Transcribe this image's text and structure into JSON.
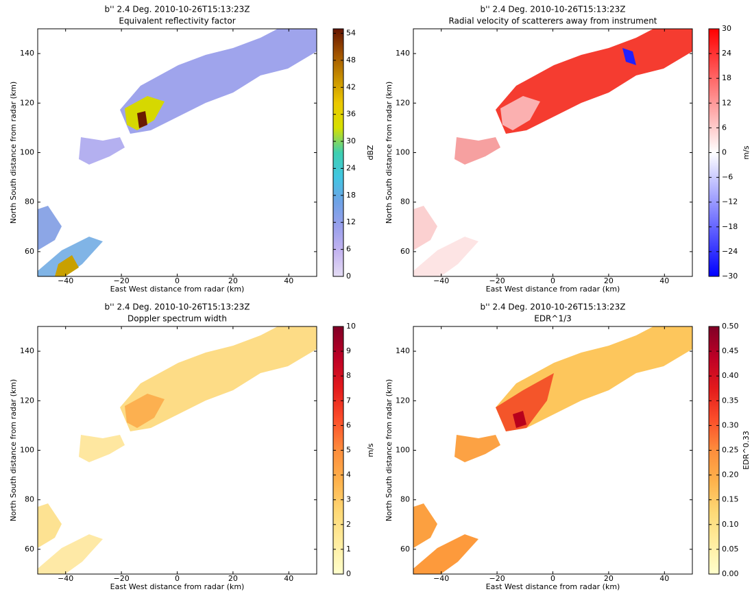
{
  "chart_data": [
    {
      "type": "heatmap",
      "title": "b'' 2.4 Deg. 2010-10-26T15:13:23Z",
      "subtitle": "Equivalent reflectivity factor",
      "xlabel": "East West distance from radar (km)",
      "ylabel": "North South distance from radar (km)",
      "xlim": [
        -50,
        50
      ],
      "ylim": [
        50,
        150
      ],
      "xticks": [
        {
          "value": -40,
          "label": "−40"
        },
        {
          "value": -20,
          "label": "−20"
        },
        0,
        20,
        40
      ],
      "yticks": [
        60,
        80,
        100,
        120,
        140
      ],
      "colorbar": {
        "label": "dBZ",
        "lim": [
          0,
          55
        ],
        "ticks": [
          0,
          6,
          12,
          18,
          24,
          30,
          36,
          42,
          48,
          54
        ],
        "colors": [
          "#e4dcf4",
          "#c4b4f0",
          "#9aa0ec",
          "#6fa2e6",
          "#42c6e2",
          "#3ecfb0",
          "#d6e000",
          "#ecc800",
          "#c89000",
          "#a05200",
          "#641400"
        ]
      }
    },
    {
      "type": "heatmap",
      "title": "b'' 2.4 Deg. 2010-10-26T15:13:23Z",
      "subtitle": "Radial velocity of scatterers away from instrument",
      "xlabel": "East West distance from radar (km)",
      "ylabel": "North South distance from radar (km)",
      "xlim": [
        -50,
        50
      ],
      "ylim": [
        50,
        150
      ],
      "xticks": [
        {
          "value": -40,
          "label": "−40"
        },
        {
          "value": -20,
          "label": "−20"
        },
        0,
        20,
        40
      ],
      "yticks": [
        60,
        80,
        100,
        120,
        140
      ],
      "colorbar": {
        "label": "m/s",
        "lim": [
          -30,
          30
        ],
        "ticks": [
          {
            "value": -30,
            "label": "−30"
          },
          {
            "value": -24,
            "label": "−24"
          },
          {
            "value": -18,
            "label": "−18"
          },
          {
            "value": -12,
            "label": "−12"
          },
          {
            "value": -6,
            "label": "−6"
          },
          0,
          6,
          12,
          18,
          24,
          30
        ],
        "colors": [
          "#0000ff",
          "#ffffff",
          "#ff0000"
        ]
      }
    },
    {
      "type": "heatmap",
      "title": "b'' 2.4 Deg. 2010-10-26T15:13:23Z",
      "subtitle": "Doppler spectrum width",
      "xlabel": "East West distance from radar (km)",
      "ylabel": "North South distance from radar (km)",
      "xlim": [
        -50,
        50
      ],
      "ylim": [
        50,
        150
      ],
      "xticks": [
        {
          "value": -40,
          "label": "−40"
        },
        {
          "value": -20,
          "label": "−20"
        },
        0,
        20,
        40
      ],
      "yticks": [
        60,
        80,
        100,
        120,
        140
      ],
      "colorbar": {
        "label": "m/s",
        "lim": [
          0,
          10
        ],
        "ticks": [
          0,
          1,
          2,
          3,
          4,
          5,
          6,
          7,
          8,
          9,
          10
        ],
        "colors": [
          "#ffffcc",
          "#ffeda0",
          "#fed976",
          "#feb24c",
          "#fd8d3c",
          "#fc4e2a",
          "#e31a1c",
          "#bd0026",
          "#800026"
        ]
      }
    },
    {
      "type": "heatmap",
      "title": "b'' 2.4 Deg. 2010-10-26T15:13:23Z",
      "subtitle": "EDR^1/3",
      "xlabel": "East West distance from radar (km)",
      "ylabel": "North South distance from radar (km)",
      "xlim": [
        -50,
        50
      ],
      "ylim": [
        50,
        150
      ],
      "xticks": [
        {
          "value": -40,
          "label": "−40"
        },
        {
          "value": -20,
          "label": "−20"
        },
        0,
        20,
        40
      ],
      "yticks": [
        60,
        80,
        100,
        120,
        140
      ],
      "colorbar": {
        "label": "EDR^0.33",
        "lim": [
          0,
          0.5
        ],
        "ticks": [
          {
            "value": 0,
            "label": "0.00"
          },
          0.05,
          {
            "value": 0.1,
            "label": "0.10"
          },
          0.15,
          {
            "value": 0.2,
            "label": "0.20"
          },
          0.25,
          {
            "value": 0.3,
            "label": "0.30"
          },
          0.35,
          {
            "value": 0.4,
            "label": "0.40"
          },
          0.45,
          {
            "value": 0.5,
            "label": "0.50"
          }
        ],
        "colors": [
          "#ffffcc",
          "#ffeda0",
          "#fed976",
          "#feb24c",
          "#fd8d3c",
          "#fc4e2a",
          "#e31a1c",
          "#bd0026",
          "#800026"
        ]
      }
    }
  ]
}
